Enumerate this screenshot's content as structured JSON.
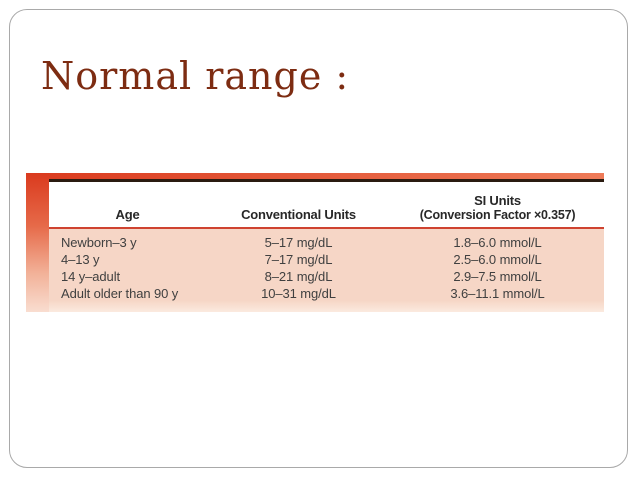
{
  "slide": {
    "title": "Normal range :"
  },
  "table": {
    "headers": {
      "age": "Age",
      "conventional": "Conventional Units",
      "si_line1": "SI Units",
      "si_line2": "(Conversion Factor ×0.357)"
    },
    "rows": [
      {
        "age": "Newborn–3 y",
        "conventional": "5–17 mg/dL",
        "si": "1.8–6.0 mmol/L"
      },
      {
        "age": "4–13 y",
        "conventional": "7–17 mg/dL",
        "si": "2.5–6.0 mmol/L"
      },
      {
        "age": "14 y–adult",
        "conventional": "8–21 mg/dL",
        "si": "2.9–7.5 mmol/L"
      },
      {
        "age": "Adult older than 90 y",
        "conventional": "10–31 mg/dL",
        "si": "3.6–11.1 mmol/L"
      }
    ]
  },
  "theme": {
    "title_color": "#7d2c12",
    "accent_red": "#cf4330",
    "accent_red_dark": "#da3a1e",
    "accent_red_light": "#ee7b58",
    "body_pink": "#f6d6c6",
    "dark_rule": "#2a1b10",
    "header_text": "#282828",
    "body_text": "#404040",
    "slide_border": "#a9a9a9"
  }
}
